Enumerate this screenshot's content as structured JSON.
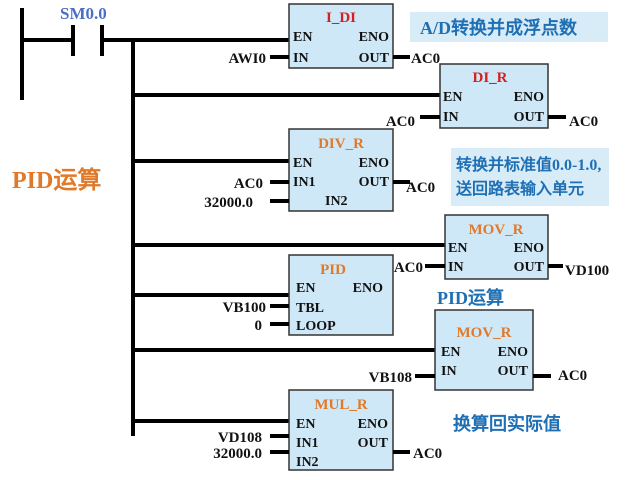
{
  "contact": {
    "label": "SM0.0"
  },
  "side_label": "PID运算",
  "notes": {
    "ad_convert": "A/D转换并成浮点数",
    "normalize_line1": "转换并标准值0.0-1.0,",
    "normalize_line2": "送回路表输入单元",
    "pid_calc": "PID运算",
    "convert_back": "换算回实际值"
  },
  "blocks": {
    "i_di": {
      "title": "I_DI",
      "en": "EN",
      "eno": "ENO",
      "in": "IN",
      "out": "OUT",
      "in_operand": "AWI0",
      "out_operand": "AC0"
    },
    "di_r": {
      "title": "DI_R",
      "en": "EN",
      "eno": "ENO",
      "in": "IN",
      "out": "OUT",
      "in_operand": "AC0",
      "out_operand": "AC0"
    },
    "div_r": {
      "title": "DIV_R",
      "en": "EN",
      "eno": "ENO",
      "in1": "IN1",
      "in2": "IN2",
      "out": "OUT",
      "in1_operand": "AC0",
      "in2_operand": "32000.0",
      "out_operand": "AC0"
    },
    "mov_r1": {
      "title": "MOV_R",
      "en": "EN",
      "eno": "ENO",
      "in": "IN",
      "out": "OUT",
      "in_operand": "AC0",
      "out_operand": "VD100"
    },
    "pid": {
      "title": "PID",
      "en": "EN",
      "eno": "ENO",
      "tbl": "TBL",
      "loop": "LOOP",
      "tbl_operand": "VB100",
      "loop_operand": "0"
    },
    "mov_r2": {
      "title": "MOV_R",
      "en": "EN",
      "eno": "ENO",
      "in": "IN",
      "out": "OUT",
      "in_operand": "VB108",
      "out_operand": "AC0"
    },
    "mul_r": {
      "title": "MUL_R",
      "en": "EN",
      "eno": "ENO",
      "in1": "IN1",
      "in2": "IN2",
      "out": "OUT",
      "in1_operand": "VD108",
      "in2_operand": "32000.0",
      "out_operand": "AC0"
    }
  }
}
